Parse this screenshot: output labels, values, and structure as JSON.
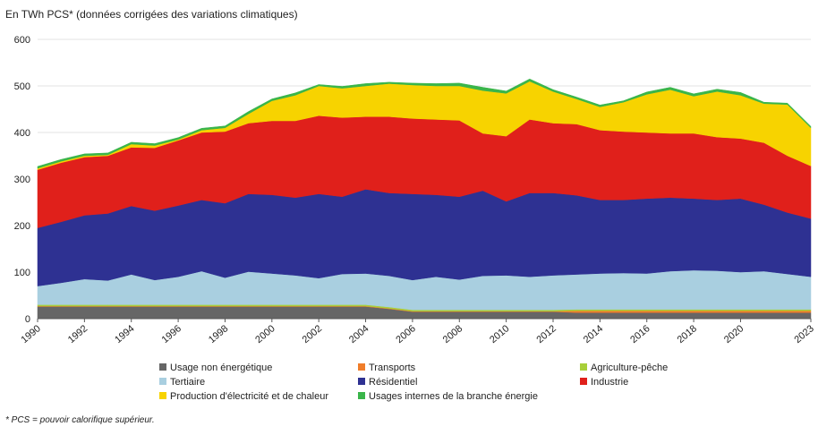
{
  "chart_data": {
    "type": "stacked_area",
    "title": "En TWh PCS* (données corrigées des variations climatiques)",
    "footnote": "* PCS = pouvoir calorifique supérieur.",
    "x": [
      1990,
      1991,
      1992,
      1993,
      1994,
      1995,
      1996,
      1997,
      1998,
      1999,
      2000,
      2001,
      2002,
      2003,
      2004,
      2005,
      2006,
      2007,
      2008,
      2009,
      2010,
      2011,
      2012,
      2013,
      2014,
      2015,
      2016,
      2017,
      2018,
      2019,
      2020,
      2021,
      2022,
      2023
    ],
    "xlim": [
      1990,
      2023
    ],
    "xticks": [
      1990,
      1992,
      1994,
      1996,
      1998,
      2000,
      2002,
      2004,
      2006,
      2008,
      2010,
      2012,
      2014,
      2016,
      2018,
      2020,
      2023
    ],
    "ylim": [
      0,
      600
    ],
    "yticks": [
      0,
      100,
      200,
      300,
      400,
      500,
      600
    ],
    "grid": true,
    "series": [
      {
        "name": "Usage non énergétique",
        "color": "#666666",
        "values": [
          26,
          26,
          26,
          26,
          26,
          26,
          26,
          26,
          26,
          26,
          26,
          26,
          26,
          26,
          26,
          21,
          15,
          15,
          15,
          15,
          15,
          15,
          15,
          13,
          13,
          13,
          13,
          13,
          13,
          13,
          13,
          13,
          13,
          13
        ]
      },
      {
        "name": "Transports",
        "color": "#f07d2a",
        "values": [
          1,
          1,
          1,
          1,
          1,
          1,
          1,
          1,
          1,
          1,
          1,
          1,
          1,
          1,
          1,
          1,
          1,
          1,
          1,
          1,
          1,
          1,
          1,
          4,
          4,
          4,
          4,
          4,
          4,
          4,
          4,
          4,
          4,
          4
        ]
      },
      {
        "name": "Agriculture-pêche",
        "color": "#a8cf3a",
        "values": [
          3,
          3,
          3,
          3,
          3,
          3,
          3,
          3,
          3,
          3,
          3,
          3,
          3,
          3,
          3,
          3,
          3,
          3,
          3,
          3,
          3,
          3,
          3,
          3,
          3,
          3,
          3,
          3,
          3,
          3,
          3,
          3,
          3,
          3
        ]
      },
      {
        "name": "Tertiaire",
        "color": "#a9cfe0",
        "values": [
          40,
          47,
          55,
          52,
          65,
          53,
          60,
          72,
          58,
          71,
          67,
          63,
          57,
          66,
          67,
          67,
          64,
          71,
          65,
          73,
          74,
          71,
          74,
          75,
          77,
          78,
          77,
          82,
          84,
          83,
          80,
          82,
          76,
          70
        ]
      },
      {
        "name": "Résidentiel",
        "color": "#2e3192",
        "values": [
          125,
          131,
          137,
          144,
          147,
          149,
          153,
          153,
          160,
          167,
          169,
          167,
          181,
          166,
          181,
          178,
          185,
          176,
          178,
          183,
          159,
          180,
          177,
          170,
          158,
          157,
          161,
          158,
          154,
          152,
          158,
          143,
          132,
          125
        ]
      },
      {
        "name": "Industrie",
        "color": "#e0201b",
        "values": [
          125,
          127,
          125,
          124,
          126,
          135,
          140,
          145,
          154,
          152,
          159,
          165,
          168,
          170,
          156,
          164,
          162,
          162,
          164,
          123,
          140,
          158,
          150,
          153,
          150,
          147,
          142,
          138,
          140,
          135,
          129,
          133,
          122,
          113
        ]
      },
      {
        "name": "Production d'électricité et de chaleur",
        "color": "#f7d300",
        "values": [
          3,
          3,
          3,
          2,
          7,
          5,
          2,
          5,
          8,
          20,
          43,
          55,
          64,
          63,
          66,
          71,
          72,
          72,
          74,
          92,
          92,
          82,
          68,
          54,
          50,
          63,
          82,
          94,
          80,
          98,
          93,
          84,
          110,
          82
        ]
      },
      {
        "name": "Usages internes de la branche énergie",
        "color": "#3ab54a",
        "values": [
          4,
          4,
          4,
          4,
          4,
          4,
          4,
          4,
          4,
          5,
          4,
          5,
          3,
          4,
          5,
          3,
          4,
          5,
          6,
          7,
          5,
          5,
          4,
          4,
          4,
          3,
          5,
          5,
          5,
          5,
          6,
          3,
          3,
          3
        ]
      }
    ],
    "legend_columns": 3
  }
}
